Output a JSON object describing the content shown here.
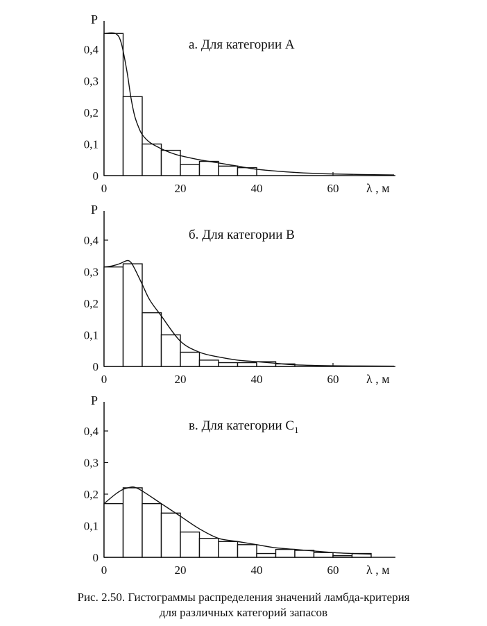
{
  "caption": {
    "line1": "Рис. 2.50. Гистограммы распределения значений ламбда-критерия",
    "line2": "для различных категорий запасов"
  },
  "chart_data": [
    {
      "type": "bar",
      "title": "а. Для категории А",
      "ylabel": "P",
      "xlabel": "λ , м",
      "xlim": [
        0,
        76
      ],
      "ylim": [
        0,
        0.45
      ],
      "xticks": [
        0,
        20,
        40,
        60
      ],
      "xtick_labels": [
        "0",
        "20",
        "40",
        "60"
      ],
      "yticks": [
        0,
        0.1,
        0.2,
        0.3,
        0.4
      ],
      "ytick_labels": [
        "0",
        "0,1",
        "0,2",
        "0,3",
        "0,4"
      ],
      "bin_edges": [
        0,
        5,
        10,
        15,
        20,
        25,
        30,
        35,
        40
      ],
      "values": [
        0.45,
        0.25,
        0.1,
        0.08,
        0.035,
        0.045,
        0.03,
        0.025
      ],
      "curve": {
        "x": [
          0,
          3,
          4.5,
          6,
          7,
          8,
          9,
          10,
          12,
          15,
          18,
          20,
          25,
          30,
          35,
          40,
          50,
          60,
          76
        ],
        "y": [
          0.45,
          0.45,
          0.42,
          0.33,
          0.25,
          0.19,
          0.155,
          0.13,
          0.105,
          0.085,
          0.07,
          0.063,
          0.05,
          0.04,
          0.03,
          0.02,
          0.01,
          0.005,
          0.002
        ]
      },
      "grid": false
    },
    {
      "type": "bar",
      "title": "б. Для категории В",
      "ylabel": "P",
      "xlabel": "λ , м",
      "xlim": [
        0,
        76
      ],
      "ylim": [
        0,
        0.45
      ],
      "xticks": [
        0,
        20,
        40,
        60
      ],
      "xtick_labels": [
        "0",
        "20",
        "40",
        "60"
      ],
      "yticks": [
        0,
        0.1,
        0.2,
        0.3,
        0.4
      ],
      "ytick_labels": [
        "0",
        "0,1",
        "0,2",
        "0,3",
        "0,4"
      ],
      "bin_edges": [
        0,
        5,
        10,
        15,
        20,
        25,
        30,
        35,
        40,
        45,
        50
      ],
      "values": [
        0.315,
        0.325,
        0.17,
        0.1,
        0.045,
        0.02,
        0.012,
        0.012,
        0.015,
        0.008
      ],
      "curve": {
        "x": [
          0,
          2,
          4,
          6,
          7,
          8,
          10,
          12,
          15,
          20,
          25,
          30,
          35,
          40,
          45,
          50,
          60,
          76
        ],
        "y": [
          0.315,
          0.318,
          0.325,
          0.335,
          0.33,
          0.31,
          0.26,
          0.21,
          0.16,
          0.08,
          0.045,
          0.03,
          0.02,
          0.015,
          0.01,
          0.005,
          0.002,
          0.001
        ]
      },
      "grid": false
    },
    {
      "type": "bar",
      "title": "в. Для категории С",
      "title_subscript": "1",
      "ylabel": "P",
      "xlabel": "λ , м",
      "xlim": [
        0,
        76
      ],
      "ylim": [
        0,
        0.45
      ],
      "xticks": [
        0,
        20,
        40,
        60
      ],
      "xtick_labels": [
        "0",
        "20",
        "40",
        "60"
      ],
      "yticks": [
        0,
        0.1,
        0.2,
        0.3,
        0.4
      ],
      "ytick_labels": [
        "0",
        "0,1",
        "0,2",
        "0,3",
        "0,4"
      ],
      "bin_edges": [
        0,
        5,
        10,
        15,
        20,
        25,
        30,
        35,
        40,
        45,
        50,
        55,
        60,
        65,
        70
      ],
      "values": [
        0.17,
        0.22,
        0.17,
        0.14,
        0.08,
        0.06,
        0.05,
        0.04,
        0.012,
        0.025,
        0.022,
        0.015,
        0.005,
        0.012
      ],
      "curve": {
        "x": [
          0,
          3,
          5,
          7,
          8,
          10,
          15,
          20,
          25,
          30,
          35,
          40,
          45,
          50,
          55,
          60,
          65,
          70
        ],
        "y": [
          0.17,
          0.2,
          0.215,
          0.222,
          0.222,
          0.21,
          0.17,
          0.13,
          0.09,
          0.06,
          0.05,
          0.04,
          0.03,
          0.025,
          0.02,
          0.015,
          0.012,
          0.01
        ]
      },
      "grid": false
    }
  ]
}
